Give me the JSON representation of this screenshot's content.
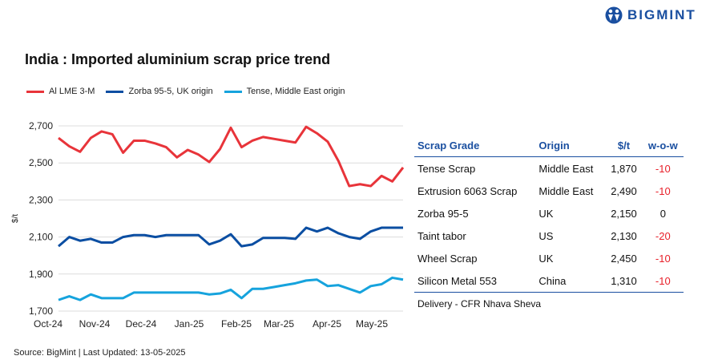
{
  "brand": {
    "name": "BIGMINT",
    "color": "#1a4fa0"
  },
  "title": "India : Imported aluminium scrap price trend",
  "chart_data": {
    "type": "line",
    "title": "India : Imported aluminium scrap price trend",
    "ylabel": "$/t",
    "xlabel": "",
    "ylim": [
      1700,
      2700
    ],
    "yticks": [
      "2,700",
      "2,500",
      "2,300",
      "2,100",
      "1,900",
      "1,700"
    ],
    "ytick_values": [
      2700,
      2500,
      2300,
      2100,
      1900,
      1700
    ],
    "xticks": [
      "Oct-24",
      "Nov-24",
      "Dec-24",
      "Jan-25",
      "Feb-25",
      "Mar-25",
      "Apr-25",
      "May-25"
    ],
    "grid": true,
    "legend": "top-left",
    "series": [
      {
        "name": "Al LME 3-M",
        "color": "#e8343a",
        "values": [
          2635,
          2590,
          2560,
          2635,
          2670,
          2655,
          2555,
          2620,
          2620,
          2605,
          2585,
          2530,
          2570,
          2545,
          2505,
          2575,
          2690,
          2585,
          2620,
          2640,
          2630,
          2620,
          2610,
          2695,
          2660,
          2615,
          2510,
          2375,
          2385,
          2375,
          2430,
          2400,
          2475
        ]
      },
      {
        "name": "Zorba 95-5, UK origin",
        "color": "#0b4ea2",
        "values": [
          2050,
          2100,
          2080,
          2090,
          2070,
          2070,
          2100,
          2110,
          2110,
          2100,
          2110,
          2110,
          2110,
          2110,
          2060,
          2080,
          2115,
          2050,
          2060,
          2095,
          2095,
          2095,
          2090,
          2150,
          2130,
          2150,
          2120,
          2100,
          2090,
          2130,
          2150,
          2150,
          2150
        ]
      },
      {
        "name": "Tense, Middle East origin",
        "color": "#16a3dd",
        "values": [
          1760,
          1780,
          1760,
          1790,
          1770,
          1770,
          1770,
          1800,
          1800,
          1800,
          1800,
          1800,
          1800,
          1800,
          1790,
          1795,
          1815,
          1770,
          1820,
          1820,
          1830,
          1840,
          1850,
          1865,
          1870,
          1835,
          1840,
          1820,
          1800,
          1835,
          1845,
          1880,
          1870
        ]
      }
    ]
  },
  "table": {
    "headers": [
      "Scrap Grade",
      "Origin",
      "$/t",
      "w-o-w"
    ],
    "rows": [
      [
        "Tense Scrap",
        "Middle East",
        "1,870",
        "-10"
      ],
      [
        "Extrusion 6063 Scrap",
        "Middle East",
        "2,490",
        "-10"
      ],
      [
        "Zorba 95-5",
        "UK",
        "2,150",
        "0"
      ],
      [
        "Taint tabor",
        "US",
        "2,130",
        "-20"
      ],
      [
        "Wheel Scrap",
        "UK",
        "2,450",
        "-10"
      ],
      [
        "Silicon Metal 553",
        "China",
        "1,310",
        "-10"
      ]
    ],
    "note": "Delivery - CFR Nhava Sheva",
    "negative_color": "#e8202a"
  },
  "source": "Source: BigMint | Last Updated: 13-05-2025"
}
